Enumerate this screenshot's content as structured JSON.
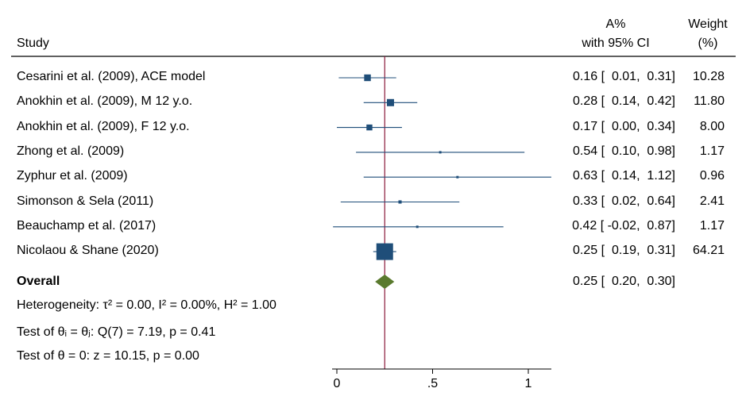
{
  "header": {
    "study_label": "Study",
    "effect_line1": "A%",
    "effect_line2": "with 95% CI",
    "weight_line1": "Weight",
    "weight_line2": "(%)"
  },
  "overall": {
    "label": "Overall",
    "ci_text": "0.25 [  0.20,  0.30]"
  },
  "footer": {
    "heterogeneity": "Heterogeneity: τ² = 0.00, I² = 0.00%, H² = 1.00",
    "test_equal": "Test of θᵢ = θⱼ: Q(7) = 7.19, p = 0.41",
    "test_zero": "Test of θ = 0: z = 10.15, p = 0.00"
  },
  "colors": {
    "marker": "#1f4e79",
    "diamond": "#5a7a2e",
    "reference_line": "#8b1a3a"
  },
  "chart_data": {
    "type": "forest",
    "xlim": [
      0,
      1
    ],
    "x_ticks": [
      0,
      0.5,
      1
    ],
    "x_tick_labels": [
      "0",
      ".5",
      "1"
    ],
    "reference_value": 0.25,
    "studies": [
      {
        "name": "Cesarini et al. (2009), ACE model",
        "estimate": 0.16,
        "lo": 0.01,
        "hi": 0.31,
        "weight": 10.28,
        "ci_text": "0.16 [  0.01,  0.31]",
        "weight_text": "10.28"
      },
      {
        "name": "Anokhin et al. (2009), M 12 y.o.",
        "estimate": 0.28,
        "lo": 0.14,
        "hi": 0.42,
        "weight": 11.8,
        "ci_text": "0.28 [  0.14,  0.42]",
        "weight_text": "11.80"
      },
      {
        "name": "Anokhin et al. (2009), F 12 y.o.",
        "estimate": 0.17,
        "lo": 0.0,
        "hi": 0.34,
        "weight": 8.0,
        "ci_text": "0.17 [  0.00,  0.34]",
        "weight_text": "8.00"
      },
      {
        "name": "Zhong et al. (2009)",
        "estimate": 0.54,
        "lo": 0.1,
        "hi": 0.98,
        "weight": 1.17,
        "ci_text": "0.54 [  0.10,  0.98]",
        "weight_text": "1.17"
      },
      {
        "name": "Zyphur et al. (2009)",
        "estimate": 0.63,
        "lo": 0.14,
        "hi": 1.12,
        "weight": 0.96,
        "ci_text": "0.63 [  0.14,  1.12]",
        "weight_text": "0.96"
      },
      {
        "name": "Simonson & Sela (2011)",
        "estimate": 0.33,
        "lo": 0.02,
        "hi": 0.64,
        "weight": 2.41,
        "ci_text": "0.33 [  0.02,  0.64]",
        "weight_text": "2.41"
      },
      {
        "name": "Beauchamp et al. (2017)",
        "estimate": 0.42,
        "lo": -0.02,
        "hi": 0.87,
        "weight": 1.17,
        "ci_text": "0.42 [ -0.02,  0.87]",
        "weight_text": "1.17"
      },
      {
        "name": "Nicolaou & Shane (2020)",
        "estimate": 0.25,
        "lo": 0.19,
        "hi": 0.31,
        "weight": 64.21,
        "ci_text": "0.25 [  0.19,  0.31]",
        "weight_text": "64.21"
      }
    ],
    "overall": {
      "estimate": 0.25,
      "lo": 0.2,
      "hi": 0.3
    }
  }
}
